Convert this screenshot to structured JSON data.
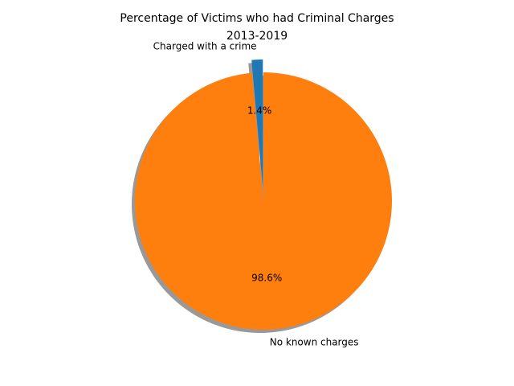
{
  "chart_data": {
    "type": "pie",
    "title_line1": "Percentage of Victims who had Criminal Charges",
    "title_line2": "2013-2019",
    "slices": [
      {
        "label": "Charged with a crime",
        "value": 1.4,
        "pct_label": "1.4%",
        "color": "#1f77b4",
        "exploded": true
      },
      {
        "label": "No known charges",
        "value": 98.6,
        "pct_label": "98.6%",
        "color": "#ff7f0e",
        "exploded": false
      }
    ],
    "start_angle": "90",
    "direction": "counterclockwise",
    "shadow": true,
    "legend": "none"
  }
}
